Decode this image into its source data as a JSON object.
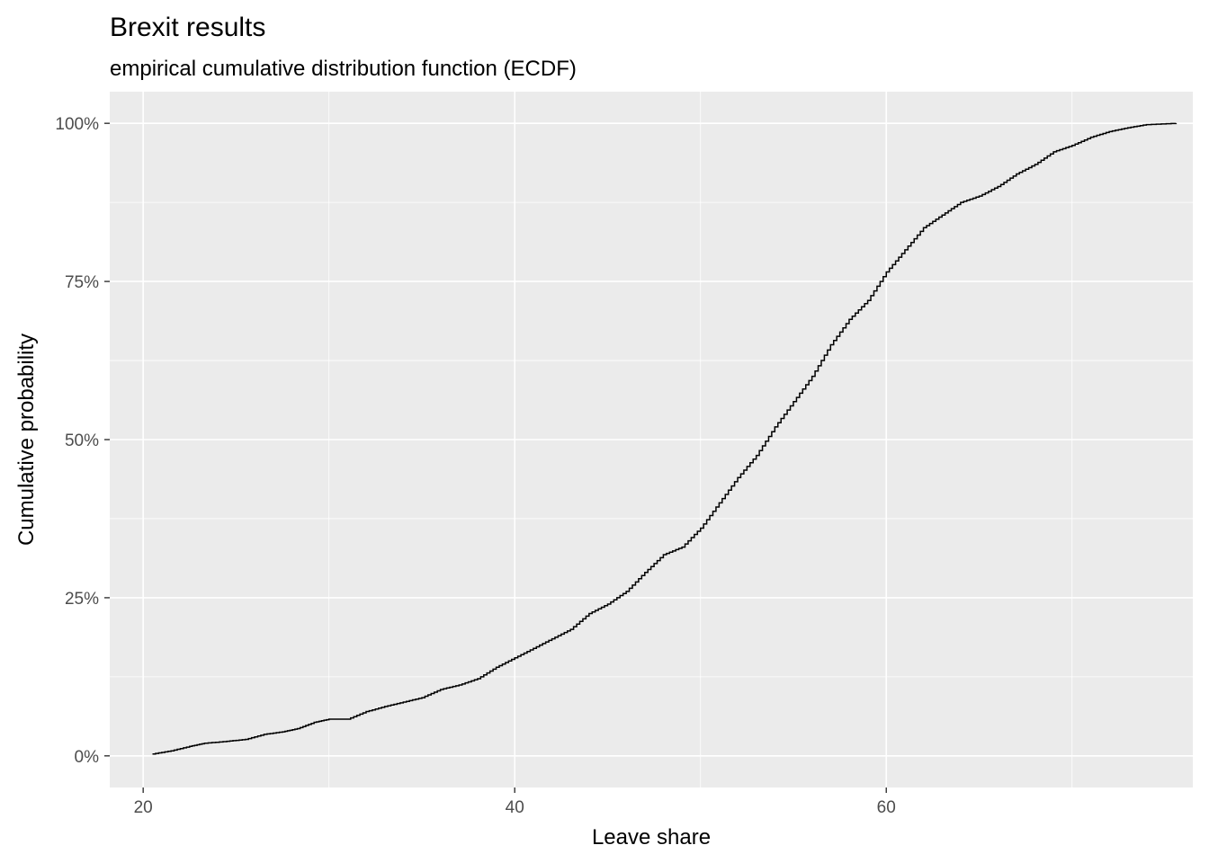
{
  "chart_data": {
    "type": "line",
    "subtype": "ecdf-step",
    "title": "Brexit results",
    "subtitle": "empirical cumulative distribution function (ECDF)",
    "xlabel": "Leave share",
    "ylabel": "Cumulative probability",
    "xlim": [
      18.2,
      76.5
    ],
    "ylim": [
      -0.05,
      1.05
    ],
    "x_ticks": [
      20,
      40,
      60
    ],
    "x_tick_labels": [
      "20",
      "40",
      "60"
    ],
    "y_ticks": [
      0,
      0.25,
      0.5,
      0.75,
      1.0
    ],
    "y_tick_labels": [
      "0%",
      "25%",
      "50%",
      "75%",
      "100%"
    ],
    "grid": true,
    "legend": "none",
    "line_color": "#000000",
    "panel_color": "#ebebeb",
    "series": [
      {
        "points": [
          [
            20.5,
            0.003
          ],
          [
            21.5,
            0.008
          ],
          [
            22.5,
            0.015
          ],
          [
            23.3,
            0.02
          ],
          [
            24.5,
            0.023
          ],
          [
            25.5,
            0.026
          ],
          [
            26.5,
            0.034
          ],
          [
            27.5,
            0.038
          ],
          [
            28.3,
            0.043
          ],
          [
            29.2,
            0.053
          ],
          [
            30.0,
            0.058
          ],
          [
            31.0,
            0.058
          ],
          [
            32.0,
            0.07
          ],
          [
            33.0,
            0.078
          ],
          [
            34.0,
            0.085
          ],
          [
            35.0,
            0.092
          ],
          [
            36.0,
            0.105
          ],
          [
            37.0,
            0.112
          ],
          [
            38.0,
            0.122
          ],
          [
            39.0,
            0.14
          ],
          [
            40.0,
            0.155
          ],
          [
            41.0,
            0.17
          ],
          [
            42.0,
            0.185
          ],
          [
            43.0,
            0.2
          ],
          [
            44.0,
            0.225
          ],
          [
            45.0,
            0.24
          ],
          [
            46.0,
            0.26
          ],
          [
            47.0,
            0.29
          ],
          [
            48.0,
            0.318
          ],
          [
            49.0,
            0.33
          ],
          [
            50.0,
            0.36
          ],
          [
            51.0,
            0.4
          ],
          [
            52.0,
            0.44
          ],
          [
            53.0,
            0.475
          ],
          [
            54.0,
            0.52
          ],
          [
            55.0,
            0.56
          ],
          [
            56.0,
            0.6
          ],
          [
            57.0,
            0.65
          ],
          [
            58.0,
            0.69
          ],
          [
            59.0,
            0.72
          ],
          [
            60.0,
            0.765
          ],
          [
            61.0,
            0.8
          ],
          [
            62.0,
            0.835
          ],
          [
            63.0,
            0.855
          ],
          [
            64.0,
            0.875
          ],
          [
            65.0,
            0.885
          ],
          [
            66.0,
            0.9
          ],
          [
            67.0,
            0.92
          ],
          [
            68.0,
            0.935
          ],
          [
            69.0,
            0.955
          ],
          [
            70.0,
            0.965
          ],
          [
            71.0,
            0.978
          ],
          [
            72.0,
            0.987
          ],
          [
            73.0,
            0.993
          ],
          [
            74.0,
            0.998
          ],
          [
            75.6,
            1.0
          ]
        ]
      }
    ]
  }
}
